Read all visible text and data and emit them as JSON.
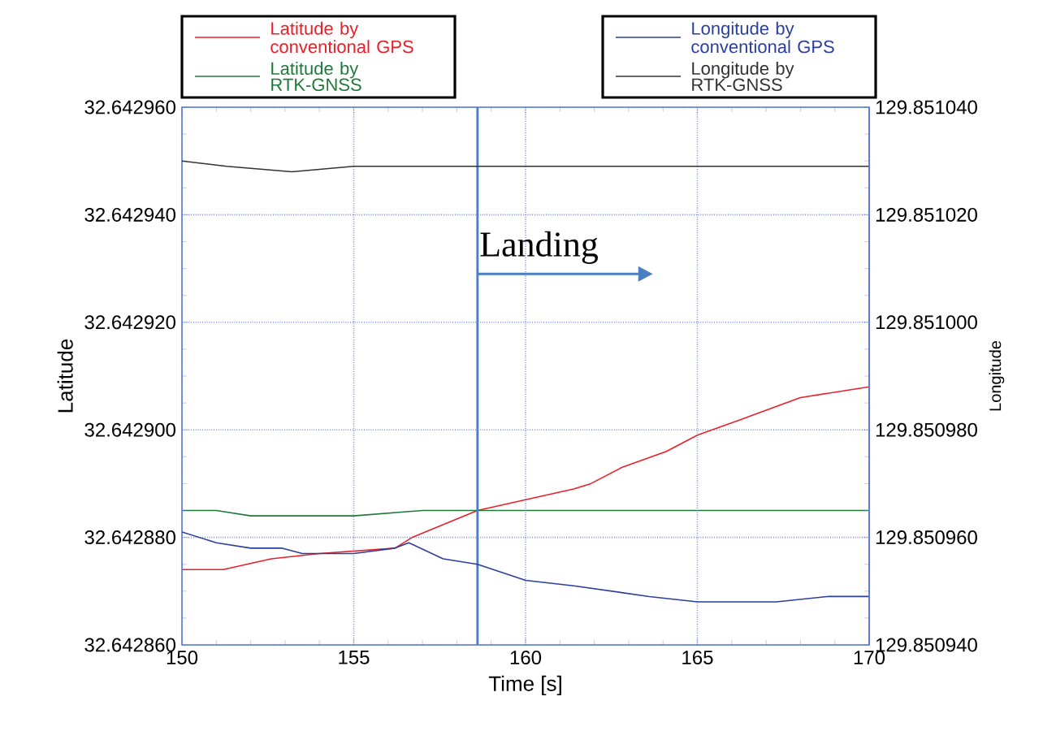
{
  "chart_data": {
    "type": "line",
    "xlabel": "Time [s]",
    "ylabel": "Latitude",
    "y2label": "Longitude",
    "xlim": [
      150,
      170
    ],
    "xticks": [
      150,
      155,
      160,
      165,
      170
    ],
    "ylim": [
      32.64286,
      32.64296
    ],
    "yticks": [
      {
        "value": 32.64286,
        "label": "32.642860"
      },
      {
        "value": 32.64288,
        "label": "32.642880"
      },
      {
        "value": 32.6429,
        "label": "32.642900"
      },
      {
        "value": 32.64292,
        "label": "32.642920"
      },
      {
        "value": 32.64294,
        "label": "32.642940"
      },
      {
        "value": 32.64296,
        "label": "32.642960"
      }
    ],
    "y2lim": [
      129.85094,
      129.85104
    ],
    "y2ticks": [
      {
        "value": 129.85094,
        "label": "129.850940"
      },
      {
        "value": 129.85096,
        "label": "129.850960"
      },
      {
        "value": 129.85098,
        "label": "129.850980"
      },
      {
        "value": 129.851,
        "label": "129.851000"
      },
      {
        "value": 129.85102,
        "label": "129.851020"
      },
      {
        "value": 129.85104,
        "label": "129.851040"
      }
    ],
    "grid": true,
    "legend": "top",
    "ref_lines": [
      {
        "axis": "x",
        "value": 158.6,
        "label": "Landing",
        "color": "#4a7fc1"
      }
    ],
    "series": [
      {
        "name": "Latitude by conventional GPS",
        "color": "#e8202a",
        "x": [
          150,
          151.2,
          152.6,
          154.0,
          156.2,
          156.7,
          158.6,
          160,
          161.4,
          161.9,
          162.8,
          164.1,
          165.0,
          166.3,
          168.0,
          170
        ],
        "values": [
          32.642874,
          32.642874,
          32.642876,
          32.642877,
          32.642878,
          32.64288,
          32.642885,
          32.642887,
          32.642889,
          32.64289,
          32.642893,
          32.642896,
          32.642899,
          32.642902,
          32.642906,
          32.642908
        ]
      },
      {
        "name": "Latitude by RTK-GNSS",
        "color": "#1f7a3a",
        "x": [
          150,
          151,
          152,
          154,
          155,
          157,
          160,
          165,
          170
        ],
        "values": [
          32.642885,
          32.642885,
          32.642884,
          32.642884,
          32.642884,
          32.642885,
          32.642885,
          32.642885,
          32.642885
        ]
      },
      {
        "name": "Longitude by conventional GPS",
        "color": "#2a3f9e",
        "axis": "y2",
        "x": [
          150,
          151.0,
          152.0,
          152.9,
          153.5,
          155.0,
          156.2,
          156.6,
          157.6,
          158.6,
          160,
          161.4,
          163.6,
          165.0,
          165.9,
          167.3,
          168.8,
          170
        ],
        "values": [
          129.850961,
          129.850959,
          129.850958,
          129.850958,
          129.850957,
          129.850957,
          129.850958,
          129.850959,
          129.850956,
          129.850955,
          129.850952,
          129.850951,
          129.850949,
          129.850948,
          129.850948,
          129.850948,
          129.850949,
          129.850949
        ]
      },
      {
        "name": "Longitude by RTK-GNSS",
        "color": "#333333",
        "axis": "y2",
        "x": [
          150,
          151.3,
          153.2,
          155,
          157.3,
          158.6,
          160,
          165,
          170
        ],
        "values": [
          129.85103,
          129.851029,
          129.851028,
          129.851029,
          129.851029,
          129.851029,
          129.851029,
          129.851029,
          129.851029
        ]
      }
    ]
  }
}
